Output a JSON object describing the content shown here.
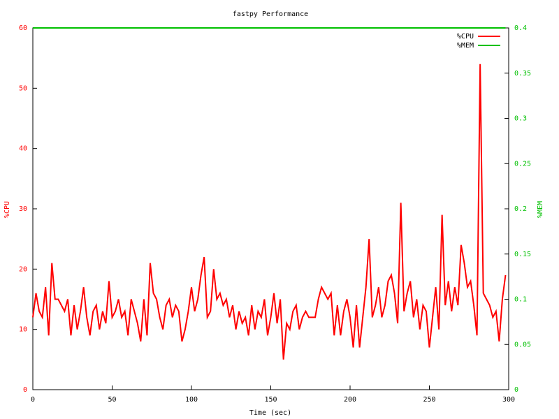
{
  "chart_data": {
    "type": "line",
    "title": "fastpy Performance",
    "x_label": "Time (sec)",
    "y_label": "%CPU",
    "y2_label": "%MEM",
    "x": [
      0,
      2,
      4,
      6,
      8,
      10,
      12,
      14,
      16,
      18,
      20,
      22,
      24,
      26,
      28,
      30,
      32,
      34,
      36,
      38,
      40,
      42,
      44,
      46,
      48,
      50,
      52,
      54,
      56,
      58,
      60,
      62,
      64,
      66,
      68,
      70,
      72,
      74,
      76,
      78,
      80,
      82,
      84,
      86,
      88,
      90,
      92,
      94,
      96,
      98,
      100,
      102,
      104,
      106,
      108,
      110,
      112,
      114,
      116,
      118,
      120,
      122,
      124,
      126,
      128,
      130,
      132,
      134,
      136,
      138,
      140,
      142,
      144,
      146,
      148,
      150,
      152,
      154,
      156,
      158,
      160,
      162,
      164,
      166,
      168,
      170,
      172,
      174,
      176,
      178,
      180,
      182,
      184,
      186,
      188,
      190,
      192,
      194,
      196,
      198,
      200,
      202,
      204,
      206,
      208,
      210,
      212,
      214,
      216,
      218,
      220,
      222,
      224,
      226,
      228,
      230,
      232,
      234,
      236,
      238,
      240,
      242,
      244,
      246,
      248,
      250,
      252,
      254,
      256,
      258,
      260,
      262,
      264,
      266,
      268,
      270,
      272,
      274,
      276,
      278,
      280,
      282,
      284,
      286,
      288,
      290,
      292,
      294,
      296,
      298
    ],
    "series": [
      {
        "name": "%CPU",
        "color": "#ff0000",
        "axis": "y",
        "values": [
          12,
          16,
          13,
          12,
          17,
          9,
          21,
          15,
          15,
          14,
          13,
          15,
          9,
          14,
          10,
          13,
          17,
          12,
          9,
          13,
          14,
          10,
          13,
          11,
          18,
          12,
          13,
          15,
          12,
          13,
          9,
          15,
          13,
          11,
          8,
          15,
          9,
          21,
          16,
          15,
          12,
          10,
          14,
          15,
          12,
          14,
          13,
          8,
          10,
          13,
          17,
          13,
          15,
          19,
          22,
          12,
          13,
          20,
          15,
          16,
          14,
          15,
          12,
          14,
          10,
          13,
          11,
          12,
          9,
          14,
          10,
          13,
          12,
          15,
          9,
          12,
          16,
          11,
          15,
          5,
          11,
          10,
          13,
          14,
          10,
          12,
          13,
          12,
          12,
          12,
          15,
          17,
          16,
          15,
          16,
          9,
          14,
          9,
          13,
          15,
          12,
          7,
          14,
          7,
          12,
          17,
          25,
          12,
          14,
          17,
          12,
          14,
          18,
          19,
          16,
          11,
          31,
          13,
          16,
          18,
          12,
          15,
          10,
          14,
          13,
          7,
          12,
          17,
          10,
          29,
          14,
          18,
          13,
          17,
          14,
          24,
          21,
          17,
          18,
          14,
          9,
          54,
          16,
          15,
          14,
          12,
          13,
          8,
          15,
          19
        ]
      },
      {
        "name": "%MEM",
        "color": "#00c000",
        "axis": "y2",
        "values": [
          0.4,
          0.4,
          0.4,
          0.4,
          0.4,
          0.4,
          0.4,
          0.4,
          0.4,
          0.4,
          0.4,
          0.4,
          0.4,
          0.4,
          0.4,
          0.4,
          0.4,
          0.4,
          0.4,
          0.4,
          0.4,
          0.4,
          0.4,
          0.4,
          0.4,
          0.4,
          0.4,
          0.4,
          0.4,
          0.4,
          0.4,
          0.4,
          0.4,
          0.4,
          0.4,
          0.4,
          0.4,
          0.4,
          0.4,
          0.4,
          0.4,
          0.4,
          0.4,
          0.4,
          0.4,
          0.4,
          0.4,
          0.4,
          0.4,
          0.4,
          0.4,
          0.4,
          0.4,
          0.4,
          0.4,
          0.4,
          0.4,
          0.4,
          0.4,
          0.4,
          0.4,
          0.4,
          0.4,
          0.4,
          0.4,
          0.4,
          0.4,
          0.4,
          0.4,
          0.4,
          0.4,
          0.4,
          0.4,
          0.4,
          0.4,
          0.4,
          0.4,
          0.4,
          0.4,
          0.4,
          0.4,
          0.4,
          0.4,
          0.4,
          0.4,
          0.4,
          0.4,
          0.4,
          0.4,
          0.4,
          0.4,
          0.4,
          0.4,
          0.4,
          0.4,
          0.4,
          0.4,
          0.4,
          0.4,
          0.4,
          0.4,
          0.4,
          0.4,
          0.4,
          0.4,
          0.4,
          0.4,
          0.4,
          0.4,
          0.4,
          0.4,
          0.4,
          0.4,
          0.4,
          0.4,
          0.4,
          0.4,
          0.4,
          0.4,
          0.4,
          0.4,
          0.4,
          0.4,
          0.4,
          0.4,
          0.4,
          0.4,
          0.4,
          0.4,
          0.4,
          0.4,
          0.4,
          0.4,
          0.4,
          0.4,
          0.4,
          0.4,
          0.4,
          0.4,
          0.4,
          0.4,
          0.4,
          0.4,
          0.4,
          0.4,
          0.4,
          0.4,
          0.4,
          0.4,
          0.4
        ]
      }
    ],
    "xlim": [
      0,
      300
    ],
    "xticks": [
      0,
      50,
      100,
      150,
      200,
      250,
      300
    ],
    "ylim": [
      0,
      60
    ],
    "yticks": [
      0,
      10,
      20,
      30,
      40,
      50,
      60
    ],
    "y2lim": [
      0,
      0.4
    ],
    "y2ticks": [
      0,
      0.05,
      0.1,
      0.15,
      0.2,
      0.25,
      0.3,
      0.35,
      0.4
    ],
    "legend": "top-right",
    "grid": false
  }
}
